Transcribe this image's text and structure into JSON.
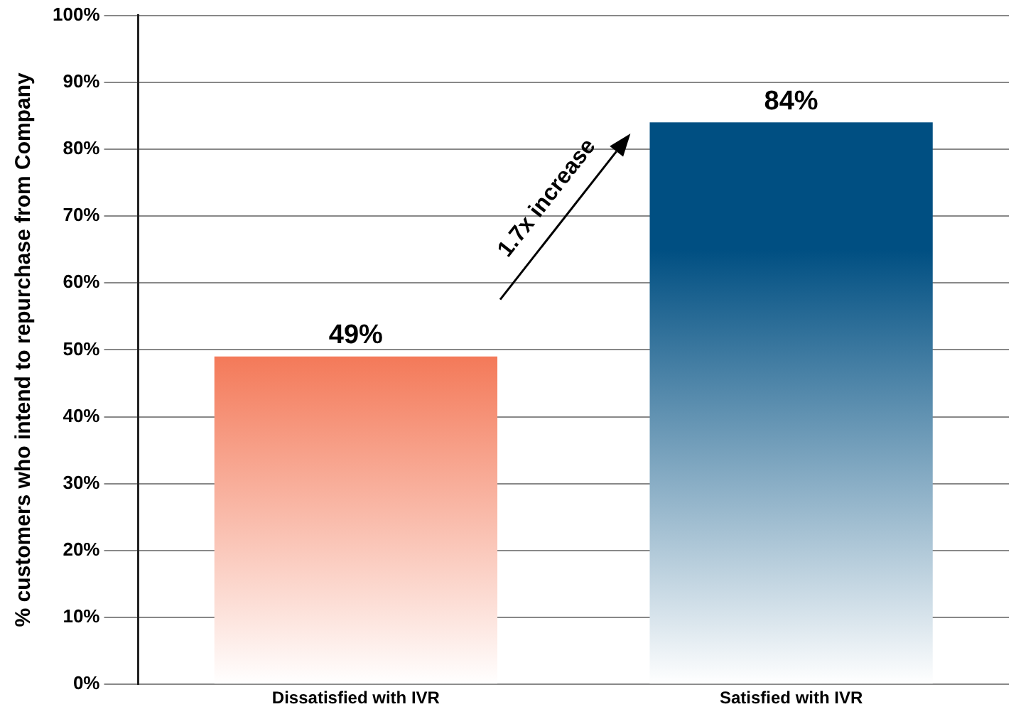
{
  "chart_data": {
    "type": "bar",
    "ylabel": "% customers who intend to repurchase from Company",
    "categories": [
      "Dissatisfied with IVR",
      "Satisfied with IVR"
    ],
    "values": [
      49,
      84
    ],
    "colors": [
      "#f04e23",
      "#004f82"
    ],
    "ylim": [
      0,
      100
    ],
    "yticks": [
      {
        "value": 0,
        "label": "0%"
      },
      {
        "value": 10,
        "label": "10%"
      },
      {
        "value": 20,
        "label": "20%"
      },
      {
        "value": 30,
        "label": "30%"
      },
      {
        "value": 40,
        "label": "40%"
      },
      {
        "value": 50,
        "label": "50%"
      },
      {
        "value": 60,
        "label": "60%"
      },
      {
        "value": 70,
        "label": "70%"
      },
      {
        "value": 80,
        "label": "80%"
      },
      {
        "value": 90,
        "label": "90%"
      },
      {
        "value": 100,
        "label": "100%"
      }
    ],
    "value_labels": [
      "49%",
      "84%"
    ],
    "grid": "y",
    "legend": false,
    "annotations": [
      "1.7x increase"
    ]
  }
}
